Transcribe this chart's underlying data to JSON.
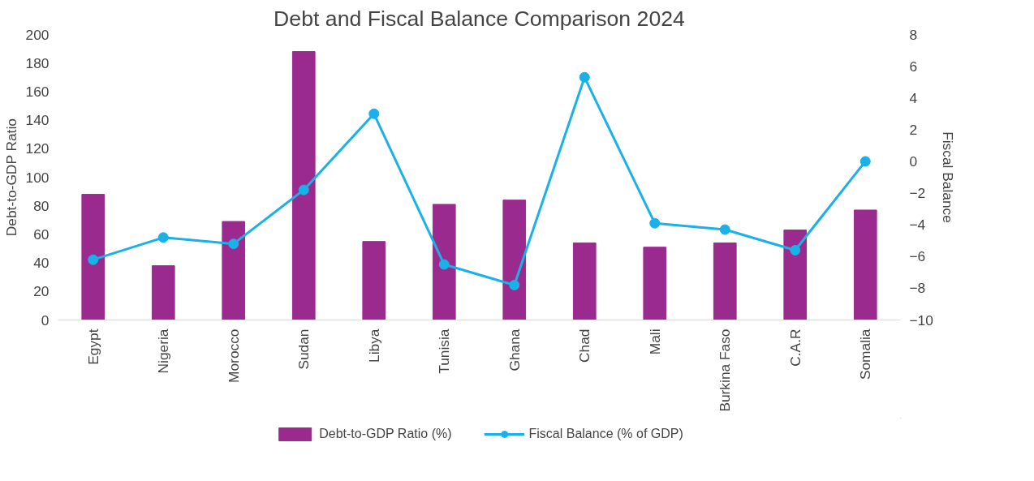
{
  "chart_data": {
    "type": "bar",
    "title": "Debt and Fiscal Balance Comparison 2024",
    "ylabel": "Debt-to-GDP Ratio",
    "y2label": "Fiscal Balance",
    "categories": [
      "Egypt",
      "Nigeria",
      "Morocco",
      "Sudan",
      "Libya",
      "Tunisia",
      "Ghana",
      "Chad",
      "Mali",
      "Burkina Faso",
      "C.A.R",
      "Somalia"
    ],
    "series": [
      {
        "name": "Debt-to-GDP Ratio (%)",
        "color": "#9b2a8e",
        "values": [
          88,
          38,
          69,
          188,
          55,
          81,
          84,
          54,
          51,
          54,
          63,
          77
        ]
      },
      {
        "name": "Fiscal Balance (% of GDP)",
        "type": "line",
        "axis": "y2",
        "color": "#1ab0e8",
        "marker": "circle",
        "values": [
          -6.2,
          -4.8,
          -5.2,
          -1.8,
          3.0,
          -6.5,
          -7.8,
          5.3,
          -3.9,
          -4.3,
          -5.6,
          0.0
        ]
      }
    ],
    "ylim": [
      0,
      200
    ],
    "yticks": [
      0,
      20,
      40,
      60,
      80,
      100,
      120,
      140,
      160,
      180,
      200
    ],
    "y2lim": [
      -10,
      8
    ],
    "y2ticks": [
      -10,
      -8,
      -6,
      -4,
      -2,
      0,
      2,
      4,
      6,
      8
    ],
    "grid": false,
    "legend": "bottom"
  }
}
